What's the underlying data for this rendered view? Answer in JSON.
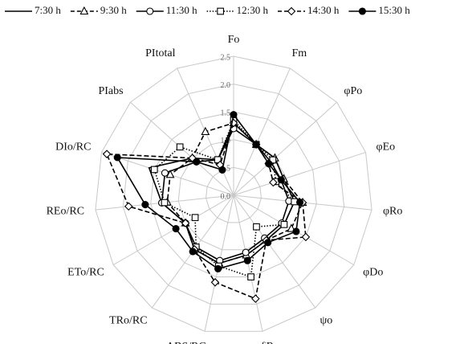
{
  "chart_data": {
    "type": "radar",
    "categories": [
      "Fo",
      "Fm",
      "φPo",
      "φEo",
      "φRo",
      "φDo",
      "ψo",
      "δRo",
      "ABS/RC",
      "TRo/RC",
      "ETo/RC",
      "REo/RC",
      "DIo/RC",
      "PIabs",
      "PItotal"
    ],
    "ylim": [
      0,
      2.5
    ],
    "yticks": [
      {
        "value": 0,
        "label": "0.0"
      },
      {
        "value": 0.5,
        "label": "0.5"
      },
      {
        "value": 1,
        "label": "1.0"
      },
      {
        "value": 1.5,
        "label": "1.5"
      },
      {
        "value": 2,
        "label": "2.0"
      },
      {
        "value": 2.5,
        "label": "2.5"
      }
    ],
    "grid": true,
    "legend": "top",
    "series": [
      {
        "name": "7:30 h",
        "color": "#000000",
        "dash": "solid",
        "marker": "none",
        "values": [
          1.3,
          1.0,
          1.0,
          0.95,
          1.1,
          1.05,
          1.0,
          1.1,
          1.25,
          1.2,
          1.0,
          1.3,
          1.6,
          1.0,
          0.7
        ]
      },
      {
        "name": "9:30 h",
        "color": "#000000",
        "dash": "dashed",
        "marker": "triangle",
        "values": [
          1.3,
          1.0,
          1.0,
          0.95,
          1.25,
          1.2,
          1.0,
          1.1,
          1.25,
          1.2,
          1.0,
          1.2,
          1.2,
          1.0,
          1.25
        ]
      },
      {
        "name": "11:30 h",
        "color": "#000000",
        "dash": "solid",
        "marker": "circle-open",
        "values": [
          1.2,
          1.0,
          0.9,
          0.9,
          1.0,
          1.0,
          0.95,
          1.05,
          1.2,
          1.15,
          1.0,
          1.3,
          1.3,
          0.9,
          0.7
        ]
      },
      {
        "name": "12:30 h",
        "color": "#000000",
        "dash": "dotted",
        "marker": "square-open",
        "values": [
          1.35,
          1.0,
          0.95,
          0.8,
          1.1,
          1.05,
          0.7,
          1.5,
          1.3,
          1.15,
          0.8,
          1.25,
          1.5,
          1.3,
          0.7
        ]
      },
      {
        "name": "14:30 h",
        "color": "#000000",
        "dash": "dashed",
        "marker": "diamond-open",
        "values": [
          1.3,
          1.0,
          0.85,
          0.75,
          1.25,
          1.5,
          1.0,
          1.9,
          1.6,
          1.2,
          1.0,
          1.9,
          2.4,
          1.0,
          0.6
        ]
      },
      {
        "name": "15:30 h",
        "color": "#000000",
        "dash": "solid",
        "marker": "circle-filled",
        "values": [
          1.45,
          1.0,
          0.85,
          0.9,
          1.2,
          1.3,
          1.05,
          1.2,
          1.35,
          1.25,
          1.2,
          1.6,
          2.2,
          0.9,
          0.5
        ]
      }
    ]
  }
}
